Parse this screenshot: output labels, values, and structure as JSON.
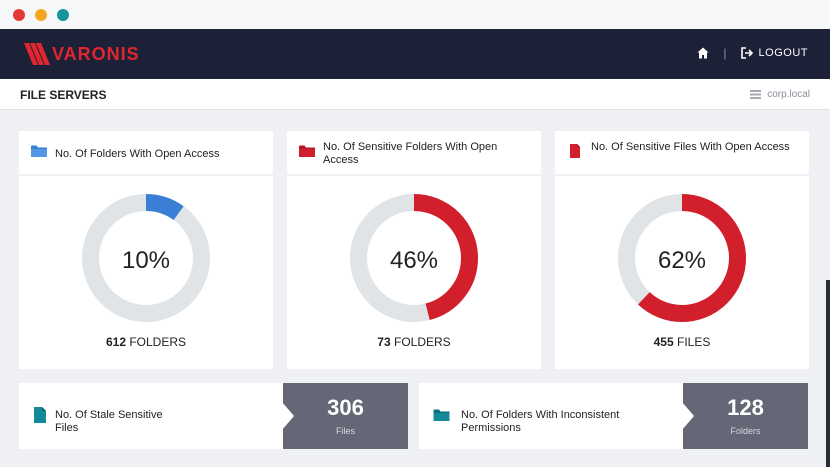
{
  "app": {
    "brand": "VARONIS"
  },
  "nav": {
    "logout_label": "LOGOUT"
  },
  "header": {
    "title": "FILE SERVERS",
    "domain": "corp.local"
  },
  "colors": {
    "accent_red": "#d21f2c",
    "accent_blue": "#3a7fd5",
    "accent_teal": "#13899a",
    "ring_bg": "#e0e4e7",
    "nav_bg": "#1d2138",
    "stat_bg": "#646876"
  },
  "cards": [
    {
      "title": "No. Of Folders With Open Access",
      "icon": "folder-icon",
      "percent": 10,
      "percent_label": "10%",
      "count": "612",
      "unit": "FOLDERS",
      "color": "#3a7fd5"
    },
    {
      "title": "No. Of Sensitive Folders With Open Access",
      "icon": "folder-icon",
      "percent": 46,
      "percent_label": "46%",
      "count": "73",
      "unit": "FOLDERS",
      "color": "#d21f2c"
    },
    {
      "title": "No. Of Sensitive Files With Open Access",
      "icon": "file-icon",
      "percent": 62,
      "percent_label": "62%",
      "count": "455",
      "unit": "FILES",
      "color": "#d21f2c"
    }
  ],
  "bottom_cards": [
    {
      "title": "No. Of Stale Sensitive Files",
      "icon": "file-icon",
      "value": "306",
      "unit": "Files"
    },
    {
      "title": "No. Of Folders With Inconsistent Permissions",
      "icon": "folder-icon",
      "value": "128",
      "unit": "Folders"
    }
  ]
}
